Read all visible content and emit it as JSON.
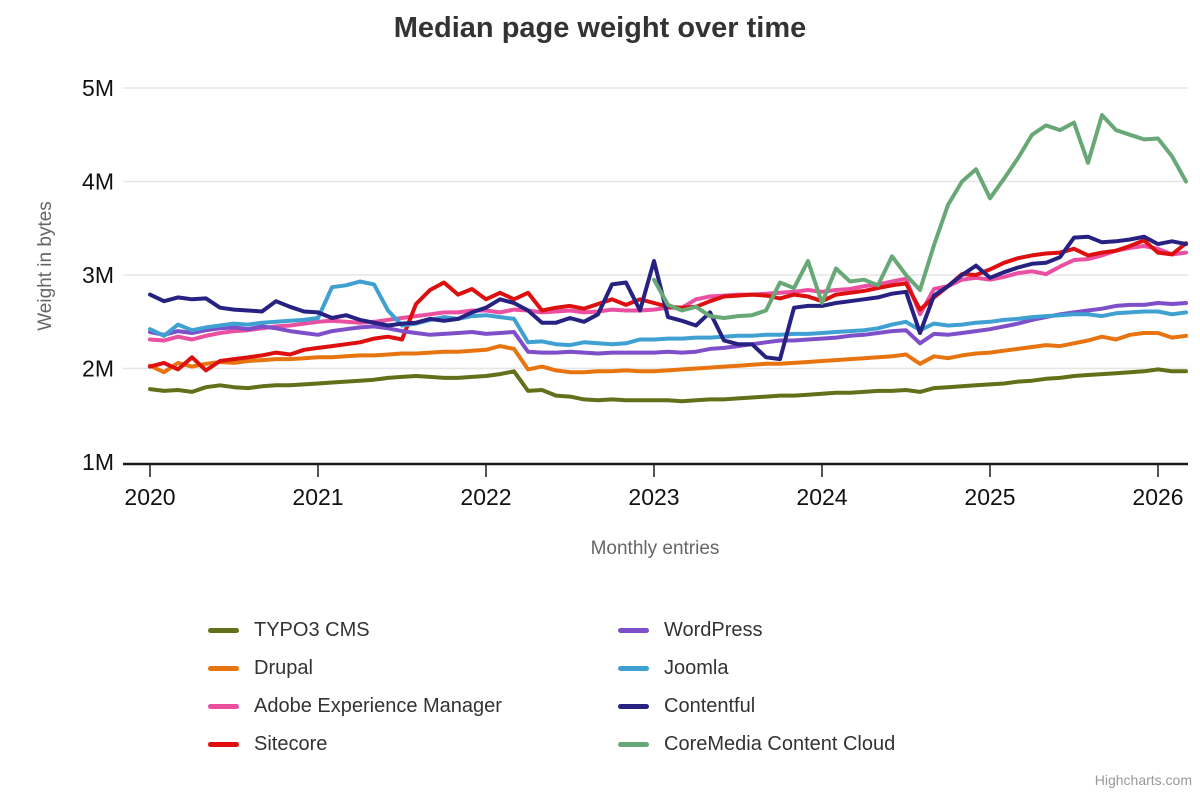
{
  "title": "Median page weight over time",
  "credit": "Highcharts.com",
  "chart_data": {
    "type": "line",
    "title": "Median page weight over time",
    "xlabel": "Monthly entries",
    "ylabel": "Weight in bytes",
    "x_start": "2020-01",
    "x_step": "1 month",
    "x_end": "2026-03",
    "values_unit": "millions of bytes",
    "ylim": [
      1,
      5
    ],
    "grid": "horizontal",
    "legend_position": "bottom-two-columns",
    "y_ticks": [
      {
        "value": 1,
        "label": "1M"
      },
      {
        "value": 2,
        "label": "2M"
      },
      {
        "value": 3,
        "label": "3M"
      },
      {
        "value": 4,
        "label": "4M"
      },
      {
        "value": 5,
        "label": "5M"
      }
    ],
    "x_ticks": [
      {
        "value": 2020,
        "label": "2020"
      },
      {
        "value": 2021,
        "label": "2021"
      },
      {
        "value": 2022,
        "label": "2022"
      },
      {
        "value": 2023,
        "label": "2023"
      },
      {
        "value": 2024,
        "label": "2024"
      },
      {
        "value": 2025,
        "label": "2025"
      },
      {
        "value": 2026,
        "label": "2026"
      }
    ],
    "series": [
      {
        "name": "TYPO3 CMS",
        "color": "#62701a",
        "values": [
          1.78,
          1.76,
          1.77,
          1.75,
          1.8,
          1.82,
          1.8,
          1.79,
          1.81,
          1.82,
          1.82,
          1.83,
          1.84,
          1.85,
          1.86,
          1.87,
          1.88,
          1.9,
          1.91,
          1.92,
          1.91,
          1.9,
          1.9,
          1.91,
          1.92,
          1.94,
          1.97,
          1.76,
          1.77,
          1.71,
          1.7,
          1.67,
          1.66,
          1.67,
          1.66,
          1.66,
          1.66,
          1.66,
          1.65,
          1.66,
          1.67,
          1.67,
          1.68,
          1.69,
          1.7,
          1.71,
          1.71,
          1.72,
          1.73,
          1.74,
          1.74,
          1.75,
          1.76,
          1.76,
          1.77,
          1.75,
          1.79,
          1.8,
          1.81,
          1.82,
          1.83,
          1.84,
          1.86,
          1.87,
          1.89,
          1.9,
          1.92,
          1.93,
          1.94,
          1.95,
          1.96,
          1.97,
          1.99,
          1.97,
          1.97
        ]
      },
      {
        "name": "Drupal",
        "color": "#e87410",
        "values": [
          2.03,
          1.96,
          2.06,
          2.02,
          2.05,
          2.07,
          2.06,
          2.08,
          2.09,
          2.1,
          2.1,
          2.11,
          2.12,
          2.12,
          2.13,
          2.14,
          2.14,
          2.15,
          2.16,
          2.16,
          2.17,
          2.18,
          2.18,
          2.19,
          2.2,
          2.24,
          2.21,
          1.99,
          2.02,
          1.98,
          1.96,
          1.96,
          1.97,
          1.97,
          1.98,
          1.97,
          1.97,
          1.98,
          1.99,
          2.0,
          2.01,
          2.02,
          2.03,
          2.04,
          2.05,
          2.05,
          2.06,
          2.07,
          2.08,
          2.09,
          2.1,
          2.11,
          2.12,
          2.13,
          2.15,
          2.05,
          2.13,
          2.11,
          2.14,
          2.16,
          2.17,
          2.19,
          2.21,
          2.23,
          2.25,
          2.24,
          2.27,
          2.3,
          2.34,
          2.31,
          2.36,
          2.38,
          2.38,
          2.33,
          2.35
        ]
      },
      {
        "name": "Adobe Experience Manager",
        "color": "#ea4fa2",
        "values": [
          2.31,
          2.3,
          2.34,
          2.31,
          2.35,
          2.38,
          2.4,
          2.41,
          2.43,
          2.45,
          2.46,
          2.48,
          2.5,
          2.51,
          2.5,
          2.49,
          2.5,
          2.52,
          2.54,
          2.56,
          2.58,
          2.6,
          2.6,
          2.62,
          2.62,
          2.6,
          2.63,
          2.62,
          2.6,
          2.61,
          2.62,
          2.6,
          2.61,
          2.63,
          2.62,
          2.62,
          2.63,
          2.65,
          2.65,
          2.74,
          2.77,
          2.78,
          2.79,
          2.79,
          2.8,
          2.81,
          2.82,
          2.84,
          2.82,
          2.84,
          2.85,
          2.88,
          2.9,
          2.93,
          2.96,
          2.58,
          2.85,
          2.88,
          2.95,
          2.97,
          2.95,
          2.98,
          3.02,
          3.04,
          3.01,
          3.09,
          3.16,
          3.17,
          3.21,
          3.26,
          3.29,
          3.31,
          3.28,
          3.22,
          3.24
        ]
      },
      {
        "name": "Sitecore",
        "color": "#dd0f0f",
        "values": [
          2.02,
          2.06,
          1.99,
          2.12,
          1.98,
          2.08,
          2.1,
          2.12,
          2.14,
          2.17,
          2.15,
          2.2,
          2.22,
          2.24,
          2.26,
          2.28,
          2.32,
          2.34,
          2.31,
          2.69,
          2.84,
          2.92,
          2.79,
          2.85,
          2.74,
          2.81,
          2.74,
          2.81,
          2.62,
          2.65,
          2.67,
          2.64,
          2.69,
          2.74,
          2.68,
          2.74,
          2.7,
          2.66,
          2.65,
          2.66,
          2.72,
          2.77,
          2.78,
          2.79,
          2.78,
          2.75,
          2.79,
          2.77,
          2.72,
          2.79,
          2.81,
          2.83,
          2.86,
          2.89,
          2.91,
          2.63,
          2.76,
          2.88,
          3.01,
          3.0,
          3.06,
          3.13,
          3.18,
          3.21,
          3.23,
          3.24,
          3.28,
          3.21,
          3.24,
          3.26,
          3.31,
          3.37,
          3.24,
          3.22,
          3.34
        ]
      },
      {
        "name": "WordPress",
        "color": "#7e4fc9",
        "values": [
          2.39,
          2.36,
          2.4,
          2.38,
          2.41,
          2.43,
          2.44,
          2.42,
          2.45,
          2.43,
          2.4,
          2.38,
          2.36,
          2.4,
          2.42,
          2.44,
          2.45,
          2.43,
          2.4,
          2.38,
          2.36,
          2.37,
          2.38,
          2.39,
          2.37,
          2.38,
          2.39,
          2.18,
          2.17,
          2.17,
          2.18,
          2.17,
          2.16,
          2.17,
          2.17,
          2.17,
          2.17,
          2.18,
          2.17,
          2.18,
          2.21,
          2.22,
          2.24,
          2.26,
          2.28,
          2.3,
          2.3,
          2.31,
          2.32,
          2.33,
          2.35,
          2.36,
          2.38,
          2.4,
          2.41,
          2.27,
          2.37,
          2.36,
          2.38,
          2.4,
          2.42,
          2.45,
          2.48,
          2.52,
          2.55,
          2.58,
          2.6,
          2.62,
          2.64,
          2.67,
          2.68,
          2.68,
          2.7,
          2.69,
          2.7
        ]
      },
      {
        "name": "Joomla",
        "color": "#3fa0d2",
        "values": [
          2.42,
          2.35,
          2.47,
          2.41,
          2.44,
          2.46,
          2.48,
          2.47,
          2.49,
          2.5,
          2.51,
          2.52,
          2.54,
          2.87,
          2.89,
          2.93,
          2.9,
          2.62,
          2.46,
          2.48,
          2.52,
          2.55,
          2.53,
          2.56,
          2.57,
          2.55,
          2.53,
          2.28,
          2.29,
          2.26,
          2.25,
          2.28,
          2.27,
          2.26,
          2.27,
          2.31,
          2.31,
          2.32,
          2.32,
          2.33,
          2.33,
          2.34,
          2.35,
          2.35,
          2.36,
          2.36,
          2.37,
          2.37,
          2.38,
          2.39,
          2.4,
          2.41,
          2.43,
          2.47,
          2.5,
          2.41,
          2.48,
          2.46,
          2.47,
          2.49,
          2.5,
          2.52,
          2.53,
          2.55,
          2.56,
          2.57,
          2.58,
          2.58,
          2.56,
          2.59,
          2.6,
          2.61,
          2.61,
          2.58,
          2.6
        ]
      },
      {
        "name": "Contentful",
        "color": "#272181",
        "values": [
          2.79,
          2.72,
          2.76,
          2.74,
          2.75,
          2.65,
          2.63,
          2.62,
          2.61,
          2.72,
          2.66,
          2.61,
          2.6,
          2.54,
          2.57,
          2.52,
          2.49,
          2.46,
          2.48,
          2.49,
          2.53,
          2.51,
          2.53,
          2.6,
          2.65,
          2.74,
          2.7,
          2.62,
          2.49,
          2.49,
          2.54,
          2.5,
          2.58,
          2.9,
          2.92,
          2.62,
          3.15,
          2.55,
          2.51,
          2.46,
          2.6,
          2.3,
          2.26,
          2.26,
          2.12,
          2.1,
          2.65,
          2.67,
          2.67,
          2.7,
          2.72,
          2.74,
          2.76,
          2.8,
          2.82,
          2.38,
          2.78,
          2.88,
          3.0,
          3.1,
          2.97,
          3.03,
          3.08,
          3.12,
          3.13,
          3.19,
          3.4,
          3.41,
          3.35,
          3.36,
          3.38,
          3.41,
          3.33,
          3.36,
          3.33
        ]
      },
      {
        "name": "CoreMedia Content Cloud",
        "color": "#68a877",
        "values": [
          null,
          null,
          null,
          null,
          null,
          null,
          null,
          null,
          null,
          null,
          null,
          null,
          null,
          null,
          null,
          null,
          null,
          null,
          null,
          null,
          null,
          null,
          null,
          null,
          null,
          null,
          null,
          null,
          null,
          null,
          null,
          null,
          null,
          null,
          null,
          null,
          2.95,
          2.68,
          2.62,
          2.66,
          2.56,
          2.54,
          2.56,
          2.57,
          2.62,
          2.92,
          2.86,
          3.15,
          2.7,
          3.07,
          2.93,
          2.95,
          2.89,
          3.2,
          3.0,
          2.84,
          3.32,
          3.75,
          4.0,
          4.13,
          3.82,
          4.03,
          4.25,
          4.5,
          4.6,
          4.55,
          4.63,
          4.2,
          4.71,
          4.55,
          4.5,
          4.45,
          4.46,
          4.27,
          4.0
        ]
      }
    ]
  }
}
